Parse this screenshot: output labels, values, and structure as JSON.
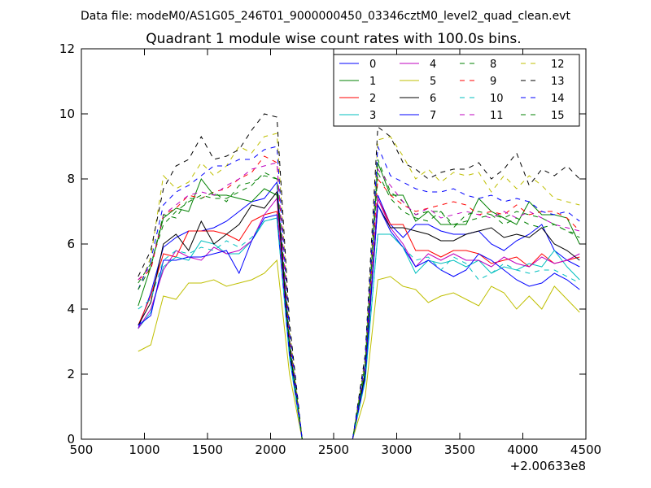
{
  "chart_data": {
    "type": "line",
    "suptitle": "Data file: modeM0/AS1G05_246T01_9000000450_03346cztM0_level2_quad_clean.evt",
    "title": "Quadrant 1 module wise count rates with 100.0s bins.",
    "xlabel": "",
    "ylabel": "",
    "x_offset_label": "+2.00633e8",
    "xlim": [
      500,
      4500
    ],
    "ylim": [
      0,
      12
    ],
    "xticks": [
      "500",
      "1000",
      "1500",
      "2000",
      "2500",
      "3000",
      "3500",
      "4000",
      "4500"
    ],
    "yticks": [
      "0",
      "2",
      "4",
      "6",
      "8",
      "10",
      "12"
    ],
    "grid": false,
    "legend_position": "top-right",
    "x": [
      950,
      1050,
      1150,
      1250,
      1350,
      1450,
      1550,
      1650,
      1750,
      1850,
      1950,
      2050,
      2150,
      2250,
      2350,
      2450,
      2550,
      2650,
      2750,
      2850,
      2950,
      3050,
      3150,
      3250,
      3350,
      3450,
      3550,
      3650,
      3750,
      3850,
      3950,
      4050,
      4150,
      4250,
      4350,
      4450
    ],
    "series": [
      {
        "name": "0",
        "color": "#0000ff",
        "dashed": false,
        "values": [
          3.4,
          4.5,
          5.9,
          6.2,
          6.4,
          6.4,
          6.5,
          6.7,
          7.0,
          7.3,
          7.4,
          7.9,
          2.8,
          0,
          0,
          0,
          0,
          0,
          2.0,
          7.5,
          6.6,
          6.2,
          6.6,
          6.6,
          6.4,
          6.3,
          6.3,
          6.4,
          6.0,
          5.8,
          6.1,
          6.3,
          6.6,
          5.8,
          5.5,
          5.3
        ]
      },
      {
        "name": "1",
        "color": "#008000",
        "dashed": false,
        "values": [
          4.1,
          5.3,
          6.8,
          7.1,
          7.0,
          8.0,
          7.5,
          7.5,
          7.4,
          7.3,
          7.7,
          7.5,
          2.9,
          0,
          0,
          0,
          0,
          0,
          2.1,
          8.5,
          7.5,
          7.5,
          6.7,
          7.0,
          6.6,
          6.6,
          6.6,
          7.4,
          7.0,
          6.8,
          6.6,
          7.3,
          6.9,
          6.9,
          6.8,
          6.0
        ]
      },
      {
        "name": "2",
        "color": "#ff0000",
        "dashed": false,
        "values": [
          3.5,
          4.4,
          5.7,
          5.6,
          6.4,
          6.4,
          6.4,
          6.3,
          6.1,
          6.7,
          6.9,
          7.0,
          2.6,
          0,
          0,
          0,
          0,
          0,
          1.9,
          7.4,
          6.6,
          6.6,
          5.8,
          5.8,
          5.6,
          5.8,
          5.8,
          5.7,
          5.4,
          5.5,
          5.6,
          5.3,
          5.7,
          5.4,
          5.5,
          5.6
        ]
      },
      {
        "name": "3",
        "color": "#00bfbf",
        "dashed": false,
        "values": [
          3.4,
          3.9,
          5.3,
          5.6,
          5.5,
          6.1,
          6.0,
          5.7,
          5.7,
          6.1,
          6.7,
          6.8,
          2.5,
          0,
          0,
          0,
          0,
          0,
          1.8,
          6.3,
          6.3,
          5.9,
          5.1,
          5.5,
          5.4,
          5.5,
          5.3,
          5.5,
          5.1,
          5.3,
          5.2,
          5.4,
          5.3,
          5.8,
          5.3,
          4.9
        ]
      },
      {
        "name": "4",
        "color": "#bf00bf",
        "dashed": false,
        "values": [
          3.4,
          4.0,
          5.2,
          5.8,
          5.6,
          5.5,
          5.9,
          5.7,
          5.8,
          6.1,
          6.9,
          7.4,
          2.7,
          0,
          0,
          0,
          0,
          0,
          1.9,
          7.4,
          6.5,
          6.0,
          5.3,
          5.7,
          5.5,
          5.7,
          5.5,
          5.5,
          5.3,
          5.6,
          5.4,
          5.3,
          5.6,
          5.4,
          5.5,
          5.7
        ]
      },
      {
        "name": "5",
        "color": "#bfbf00",
        "dashed": false,
        "values": [
          2.7,
          2.9,
          4.4,
          4.3,
          4.8,
          4.8,
          4.9,
          4.7,
          4.8,
          4.9,
          5.1,
          5.5,
          2.0,
          0,
          0,
          0,
          0,
          0,
          1.3,
          4.9,
          5.0,
          4.7,
          4.6,
          4.2,
          4.4,
          4.5,
          4.3,
          4.1,
          4.7,
          4.5,
          4.0,
          4.4,
          4.0,
          4.7,
          4.3,
          3.9
        ]
      },
      {
        "name": "6",
        "color": "#000000",
        "dashed": false,
        "values": [
          3.5,
          4.2,
          6.0,
          6.3,
          5.8,
          6.7,
          6.0,
          6.3,
          6.6,
          7.2,
          7.1,
          7.6,
          2.8,
          0,
          0,
          0,
          0,
          0,
          2.0,
          7.2,
          6.5,
          6.5,
          6.4,
          6.3,
          6.1,
          6.1,
          6.3,
          6.4,
          6.5,
          6.2,
          6.3,
          6.2,
          6.5,
          6.0,
          5.8,
          5.5
        ]
      },
      {
        "name": "7",
        "color": "#0000ff",
        "dashed": false,
        "values": [
          3.5,
          3.8,
          5.5,
          5.5,
          5.6,
          5.6,
          5.7,
          5.8,
          5.1,
          6.1,
          6.8,
          6.9,
          2.6,
          0,
          0,
          0,
          0,
          0,
          1.9,
          7.2,
          6.4,
          5.9,
          5.3,
          5.5,
          5.2,
          5.0,
          5.2,
          5.7,
          5.5,
          5.2,
          4.9,
          4.7,
          4.8,
          5.1,
          4.9,
          4.6
        ]
      },
      {
        "name": "8",
        "color": "#008000",
        "dashed": true,
        "values": [
          4.8,
          5.4,
          6.6,
          7.0,
          7.3,
          7.5,
          7.4,
          7.4,
          7.6,
          7.8,
          8.2,
          8.0,
          3.1,
          0,
          0,
          0,
          0,
          0,
          2.3,
          8.6,
          7.6,
          7.3,
          6.9,
          7.0,
          7.0,
          6.5,
          6.9,
          7.0,
          6.9,
          6.8,
          7.0,
          6.9,
          6.8,
          6.6,
          6.4,
          6.2
        ]
      },
      {
        "name": "9",
        "color": "#ff0000",
        "dashed": true,
        "values": [
          4.9,
          5.2,
          6.9,
          7.1,
          7.5,
          7.4,
          7.6,
          7.7,
          8.0,
          8.2,
          8.7,
          8.5,
          3.1,
          0,
          0,
          0,
          0,
          0,
          2.3,
          8.0,
          7.5,
          7.2,
          7.0,
          7.1,
          7.2,
          7.3,
          7.2,
          6.9,
          7.0,
          6.9,
          7.2,
          6.9,
          7.0,
          7.0,
          6.8,
          6.4
        ]
      },
      {
        "name": "10",
        "color": "#00bfbf",
        "dashed": true,
        "values": [
          4.0,
          4.3,
          5.5,
          5.8,
          5.7,
          5.9,
          5.8,
          6.1,
          5.9,
          6.2,
          6.7,
          6.8,
          2.6,
          0,
          0,
          0,
          0,
          0,
          1.8,
          6.3,
          6.3,
          5.9,
          5.5,
          5.6,
          5.2,
          5.6,
          5.4,
          4.9,
          5.1,
          5.4,
          5.2,
          5.1,
          5.2,
          5.2,
          5.0,
          4.8
        ]
      },
      {
        "name": "11",
        "color": "#bf00bf",
        "dashed": true,
        "values": [
          4.9,
          5.3,
          6.9,
          7.2,
          7.5,
          7.6,
          7.5,
          7.8,
          8.0,
          8.3,
          8.4,
          8.5,
          3.1,
          0,
          0,
          0,
          0,
          0,
          2.3,
          8.3,
          7.8,
          7.3,
          6.9,
          7.1,
          6.8,
          6.9,
          7.0,
          6.9,
          6.8,
          7.0,
          6.8,
          7.0,
          6.8,
          6.6,
          6.5,
          6.4
        ]
      },
      {
        "name": "12",
        "color": "#bfbf00",
        "dashed": true,
        "values": [
          4.6,
          5.6,
          8.1,
          7.7,
          7.9,
          8.5,
          8.1,
          8.4,
          9.0,
          8.8,
          9.3,
          9.4,
          3.4,
          0,
          0,
          0,
          0,
          0,
          2.5,
          9.2,
          9.3,
          8.7,
          8.0,
          8.3,
          7.9,
          8.2,
          8.1,
          8.2,
          7.6,
          8.1,
          7.7,
          8.1,
          7.8,
          7.4,
          7.3,
          7.2
        ]
      },
      {
        "name": "13",
        "color": "#000000",
        "dashed": true,
        "values": [
          5.0,
          5.8,
          7.7,
          8.4,
          8.6,
          9.3,
          8.6,
          8.7,
          8.9,
          9.5,
          10.0,
          9.9,
          3.6,
          0,
          0,
          0,
          0,
          0,
          2.6,
          9.6,
          9.3,
          8.5,
          8.3,
          8.0,
          8.2,
          8.3,
          8.3,
          8.5,
          8.0,
          8.3,
          8.8,
          7.8,
          8.3,
          8.1,
          8.4,
          8.0
        ]
      },
      {
        "name": "14",
        "color": "#0000ff",
        "dashed": true,
        "values": [
          4.6,
          5.5,
          7.2,
          7.6,
          7.8,
          8.1,
          8.4,
          8.4,
          8.6,
          8.6,
          8.9,
          9.0,
          3.3,
          0,
          0,
          0,
          0,
          0,
          2.4,
          9.0,
          8.1,
          7.9,
          7.7,
          7.6,
          7.6,
          7.7,
          7.5,
          7.4,
          7.5,
          7.3,
          7.4,
          7.3,
          7.0,
          6.9,
          7.0,
          6.7
        ]
      },
      {
        "name": "15",
        "color": "#008000",
        "dashed": true,
        "values": [
          4.6,
          5.3,
          6.9,
          6.8,
          7.4,
          7.4,
          7.6,
          7.3,
          7.8,
          7.9,
          8.1,
          8.0,
          3.0,
          0,
          0,
          0,
          0,
          0,
          2.3,
          8.2,
          7.4,
          7.0,
          6.8,
          6.7,
          7.0,
          6.6,
          6.7,
          6.8,
          6.9,
          6.6,
          6.8,
          6.6,
          6.5,
          6.6,
          6.4,
          6.3
        ]
      }
    ]
  }
}
